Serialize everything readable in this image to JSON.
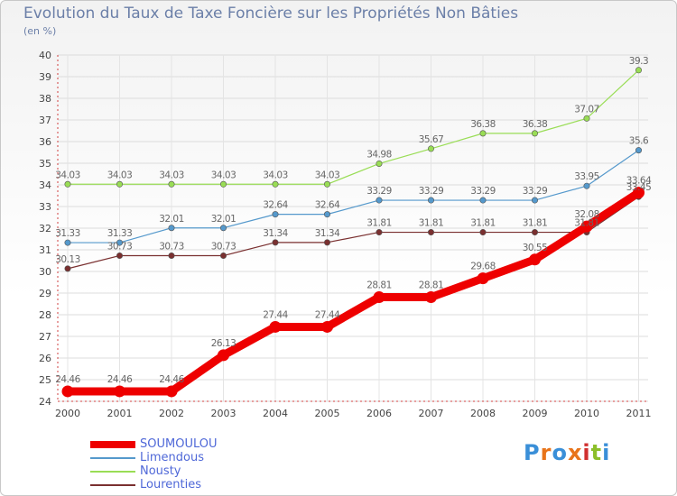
{
  "title": "Evolution du Taux de Taxe Foncière sur les Propriétés Non Bâties",
  "subtitle": "(en %)",
  "brand": {
    "text": "Proxiti",
    "letter_colors": [
      "#3a8fd8",
      "#e8741a",
      "#3a8fd8",
      "#e8741a",
      "#d03030",
      "#8cbf2a",
      "#3a8fd8"
    ]
  },
  "chart_data": {
    "type": "line",
    "title": "Evolution du Taux de Taxe Foncière sur les Propriétés Non Bâties",
    "subtitle": "(en %)",
    "x": [
      "2000",
      "2001",
      "2002",
      "2003",
      "2004",
      "2005",
      "2006",
      "2007",
      "2008",
      "2009",
      "2010",
      "2011"
    ],
    "y_ticks": [
      "24",
      "25",
      "26",
      "27",
      "28",
      "29",
      "30",
      "31",
      "32",
      "33",
      "34",
      "35",
      "36",
      "37",
      "38",
      "39",
      "40"
    ],
    "ylim": [
      24,
      40
    ],
    "grid": true,
    "legend_position": "bottom-left",
    "series": [
      {
        "name": "Nousty",
        "color": "#99dd55",
        "values": [
          34.03,
          34.03,
          34.03,
          34.03,
          34.03,
          34.03,
          34.98,
          35.67,
          36.38,
          36.38,
          37.07,
          39.3
        ],
        "labels": [
          "34.03",
          "34.03",
          "34.03",
          "34.03",
          "34.03",
          "34.03",
          "34.98",
          "35.67",
          "36.38",
          "36.38",
          "37.07",
          "39.3"
        ]
      },
      {
        "name": "Limendous",
        "color": "#5599cc",
        "values": [
          31.33,
          31.33,
          32.01,
          32.01,
          32.64,
          32.64,
          33.29,
          33.29,
          33.29,
          33.29,
          33.95,
          35.6
        ],
        "labels": [
          "31.33",
          "31.33",
          "32.01",
          "32.01",
          "32.64",
          "32.64",
          "33.29",
          "33.29",
          "33.29",
          "33.29",
          "33.95",
          "35.6"
        ]
      },
      {
        "name": "Lourenties",
        "color": "#7a3030",
        "values": [
          30.13,
          30.73,
          30.73,
          30.73,
          31.34,
          31.34,
          31.81,
          31.81,
          31.81,
          31.81,
          31.81,
          33.45
        ],
        "labels": [
          "30.13",
          "30.73",
          "30.73",
          "30.73",
          "31.34",
          "31.34",
          "31.81",
          "31.81",
          "31.81",
          "31.81",
          "31.81",
          "33.45"
        ]
      },
      {
        "name": "SOUMOULOU",
        "color": "#ee0000",
        "values": [
          24.46,
          24.46,
          24.46,
          26.13,
          27.44,
          27.44,
          28.81,
          28.81,
          29.68,
          30.55,
          32.08,
          33.64
        ],
        "labels": [
          "24.46",
          "24.46",
          "24.46",
          "26.13",
          "27.44",
          "27.44",
          "28.81",
          "28.81",
          "29.68",
          "30.55",
          "32.08",
          "33.64"
        ]
      }
    ],
    "legend": [
      {
        "name": "SOUMOULOU",
        "color": "#ee0000"
      },
      {
        "name": "Limendous",
        "color": "#5599cc"
      },
      {
        "name": "Nousty",
        "color": "#99dd55"
      },
      {
        "name": "Lourenties",
        "color": "#7a3030"
      }
    ]
  }
}
